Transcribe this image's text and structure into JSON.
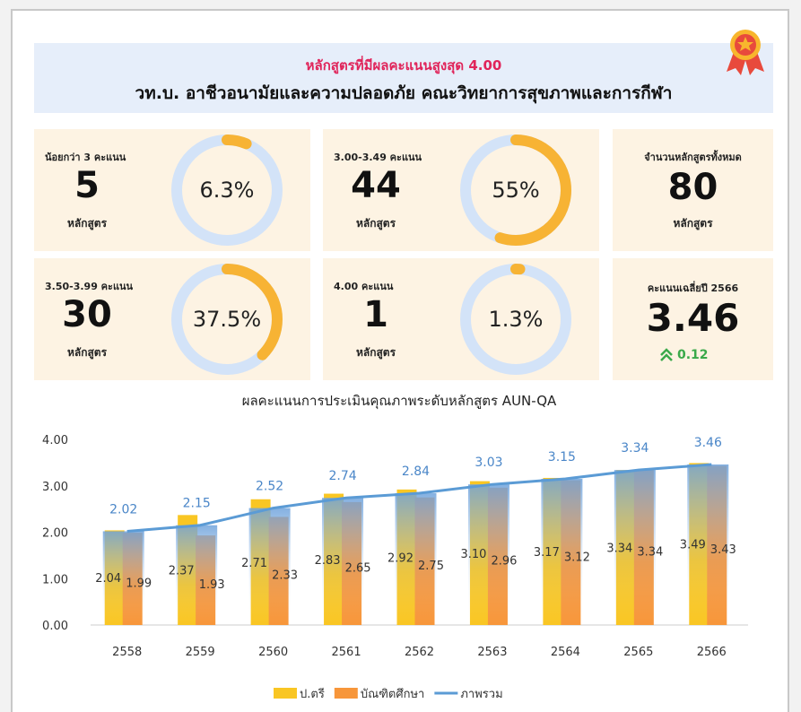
{
  "header": {
    "subtitle": "หลักสูตรที่มีผลคะแนนสูงสุด 4.00",
    "title": "วท.บ. อาชีวอนามัยและความปลอดภัย คณะวิทยาการสุขภาพและการกีฬา"
  },
  "cards": [
    {
      "label": "น้อยกว่า 3 คะแนน",
      "count": 5,
      "unit": "หลักสูตร",
      "percent": 6.3,
      "percent_label": "6.3%"
    },
    {
      "label": "3.00-3.49 คะแนน",
      "count": 44,
      "unit": "หลักสูตร",
      "percent": 55,
      "percent_label": "55%"
    },
    {
      "label": "3.50-3.99 คะแนน",
      "count": 30,
      "unit": "หลักสูตร",
      "percent": 37.5,
      "percent_label": "37.5%"
    },
    {
      "label": "4.00 คะแนน",
      "count": 1,
      "unit": "หลักสูตร",
      "percent": 1.3,
      "percent_label": "1.3%"
    }
  ],
  "total": {
    "label": "จำนวนหลักสูตรทั้งหมด",
    "value": 80,
    "unit": "หลักสูตร"
  },
  "average": {
    "label": "คะแนนเฉลี่ยปี 2566",
    "value": 3.46,
    "change": 0.12
  },
  "chart_data": {
    "type": "bar",
    "title": "ผลคะแนนการประเมินคุณภาพระดับหลักสูตร AUN-QA",
    "categories": [
      "2558",
      "2559",
      "2560",
      "2561",
      "2562",
      "2563",
      "2564",
      "2565",
      "2566"
    ],
    "series": [
      {
        "name": "ป.ตรี",
        "color": "#f9c623",
        "values": [
          2.04,
          2.37,
          2.71,
          2.83,
          2.92,
          3.1,
          3.17,
          3.34,
          3.49
        ],
        "value_labels": [
          "2.04",
          "2.37",
          "2.71",
          "2.83",
          "2.92",
          "3.10",
          "3.17",
          "3.34",
          "3.49"
        ]
      },
      {
        "name": "บัณฑิตศึกษา",
        "color": "#f7963a",
        "values": [
          1.99,
          1.93,
          2.33,
          2.65,
          2.75,
          2.96,
          3.12,
          3.34,
          3.43
        ],
        "value_labels": [
          "1.99",
          "1.93",
          "2.33",
          "2.65",
          "2.75",
          "2.96",
          "3.12",
          "3.34",
          "3.43"
        ]
      },
      {
        "name": "ภาพรวม",
        "type": "line",
        "color": "#5b9bd5",
        "values": [
          2.02,
          2.15,
          2.52,
          2.74,
          2.84,
          3.03,
          3.15,
          3.34,
          3.46
        ],
        "value_labels": [
          "2.02",
          "2.15",
          "2.52",
          "2.74",
          "2.84",
          "3.03",
          "3.15",
          "3.34",
          "3.46"
        ]
      }
    ],
    "ylim": [
      0,
      4
    ],
    "yticks": [
      {
        "value": 0,
        "label": "0.00"
      },
      {
        "value": 1,
        "label": "1.00"
      },
      {
        "value": 2,
        "label": "2.00"
      },
      {
        "value": 3,
        "label": "3.00"
      },
      {
        "value": 4,
        "label": "4.00"
      }
    ],
    "legend": "bottom"
  }
}
